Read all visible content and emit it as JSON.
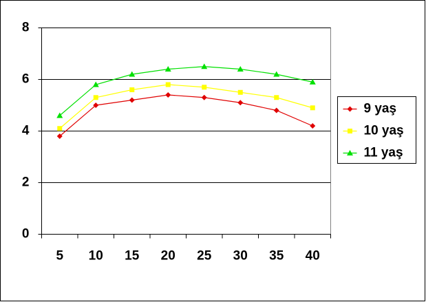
{
  "chart_data": {
    "type": "line",
    "categories": [
      "5",
      "10",
      "15",
      "20",
      "25",
      "30",
      "35",
      "40"
    ],
    "series": [
      {
        "name": "9 yaş",
        "color": "#e00000",
        "marker": "diamond",
        "values": [
          3.8,
          5.0,
          5.2,
          5.4,
          5.3,
          5.1,
          4.8,
          4.2
        ]
      },
      {
        "name": "10 yaş",
        "color": "#ffff00",
        "marker": "square",
        "values": [
          4.1,
          5.3,
          5.6,
          5.8,
          5.7,
          5.5,
          5.3,
          4.9
        ]
      },
      {
        "name": "11 yaş",
        "color": "#00e000",
        "marker": "triangle",
        "values": [
          4.6,
          5.8,
          6.2,
          6.4,
          6.5,
          6.4,
          6.2,
          5.9
        ]
      }
    ],
    "ylim": [
      0,
      8
    ],
    "yticks": [
      0,
      2,
      4,
      6,
      8
    ],
    "grid": true,
    "legend": "right"
  }
}
